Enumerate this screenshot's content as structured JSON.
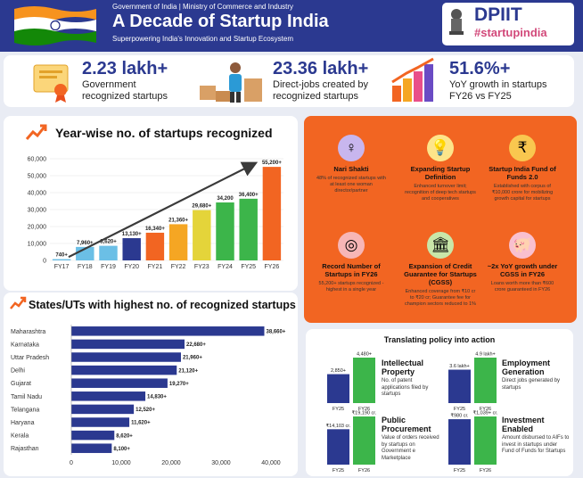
{
  "header": {
    "ministry": "Government of India | Ministry of Commerce and Industry",
    "title": "A Decade of Startup India",
    "subtitle": "Superpowering India's Innovation and Startup Ecosystem",
    "dpiit": "DPIIT",
    "hashtag": "#startupindia"
  },
  "stats": [
    {
      "value": "2.23 lakh+",
      "label": "Government recognized startups"
    },
    {
      "value": "23.36 lakh+",
      "label": "Direct-jobs created by recognized startups"
    },
    {
      "value": "51.6%+",
      "label": "YoY growth in startups FY26 vs FY25"
    }
  ],
  "colors": {
    "navy": "#2b3990",
    "orange": "#f26522",
    "green": "#3cb54a",
    "sky": "#6bbfe6",
    "yellow": "#e4d43a",
    "gold": "#f5a623"
  },
  "chart_data": [
    {
      "type": "bar",
      "title": "Year-wise no. of startups recognized",
      "categories": [
        "FY17",
        "FY18",
        "FY19",
        "FY20",
        "FY21",
        "FY22",
        "FY23",
        "FY24",
        "FY25",
        "FY26"
      ],
      "values": [
        740,
        7960,
        8620,
        13130,
        16340,
        21360,
        29680,
        34200,
        36400,
        55200
      ],
      "data_labels": [
        "740+",
        "7,960+",
        "8,620+",
        "13,130+",
        "16,340+",
        "21,360+",
        "29,680+",
        "34,200",
        "36,400+",
        "55,200+"
      ],
      "ylim": [
        0,
        60000
      ],
      "y_ticks": [
        0,
        10000,
        20000,
        30000,
        40000,
        50000,
        60000
      ],
      "y_tick_labels": [
        "0",
        "10,000",
        "20,000",
        "30,000",
        "40,000",
        "50,000",
        "60,000"
      ],
      "bar_colors": [
        "#6bbfe6",
        "#6bbfe6",
        "#6bbfe6",
        "#2b3990",
        "#f26522",
        "#f5a623",
        "#e4d43a",
        "#3cb54a",
        "#3cb54a",
        "#f26522"
      ]
    },
    {
      "type": "bar",
      "orientation": "horizontal",
      "title": "States/UTs with highest no. of recognized startups",
      "categories": [
        "Maharashtra",
        "Karnataka",
        "Uttar Pradesh",
        "Delhi",
        "Gujarat",
        "Tamil Nadu",
        "Telangana",
        "Haryana",
        "Kerala",
        "Rajasthan"
      ],
      "values": [
        38660,
        22680,
        21960,
        21120,
        19270,
        14830,
        12520,
        11620,
        8620,
        8100
      ],
      "data_labels": [
        "38,660+",
        "22,680+",
        "21,960+",
        "21,120+",
        "19,270+",
        "14,830+",
        "12,520+",
        "11,620+",
        "8,620+",
        "8,100+"
      ],
      "xlim": [
        0,
        40000
      ],
      "x_ticks": [
        0,
        10000,
        20000,
        30000,
        40000
      ],
      "x_tick_labels": [
        "0",
        "10,000",
        "20,000",
        "30,000",
        "40,000"
      ]
    },
    {
      "type": "bar",
      "title": "Translating policy into action",
      "panels": [
        {
          "name": "Intellectual Property",
          "desc": "No. of patent applications filed by startups",
          "categories": [
            "FY25",
            "FY26"
          ],
          "values": [
            2850,
            4480
          ],
          "data_labels": [
            "2,850+",
            "4,480+"
          ]
        },
        {
          "name": "Employment Generation",
          "desc": "Direct jobs generated by startups",
          "categories": [
            "FY25",
            "FY26"
          ],
          "values": [
            3.6,
            4.9
          ],
          "data_labels": [
            "3.6 lakh+",
            "4.9 lakh+"
          ]
        },
        {
          "name": "Public Procurement",
          "desc": "Value of orders received by startups on Government e Marketplace",
          "categories": [
            "FY25",
            "FY26"
          ],
          "values": [
            14103,
            19190
          ],
          "data_labels": [
            "₹14,103 cr.",
            "₹19,190 cr."
          ]
        },
        {
          "name": "Investment Enabled",
          "desc": "Amount disbursed to AIFs to invest in startups under Fund of Funds for Startups",
          "categories": [
            "FY25",
            "FY26"
          ],
          "values": [
            980,
            1039
          ],
          "data_labels": [
            "₹980 cr.",
            "₹1,039+ cr."
          ]
        }
      ]
    }
  ],
  "tiles": [
    {
      "title": "Nari Shakti",
      "desc": "48% of recognized startups with at least one woman director/partner",
      "icon": "woman-icon",
      "bg": "#ece6f7"
    },
    {
      "title": "Expanding Startup Definition",
      "desc": "Enhanced turnover limit; recognition of deep tech startups and cooperatives",
      "icon": "bulb-icon",
      "bg": "#e3f4dc"
    },
    {
      "title": "Startup India Fund of Funds 2.0",
      "desc": "Established with corpus of ₹10,000 crore for mobilizing growth capital for startups",
      "icon": "coin-icon",
      "bg": "#fdf1d0"
    },
    {
      "title": "Record Number of Startups in FY26",
      "desc": "55,200+ startups recognized - highest in a single year",
      "icon": "target-icon",
      "bg": "#e3eaf7"
    },
    {
      "title": "Expansion of Credit Guarantee for Startups (CGSS)",
      "desc": "Enhanced coverage from ₹10 cr to ₹20 cr; Guarantee fee for champion sectors reduced to 1%",
      "icon": "bank-icon",
      "bg": "#e3f4dc"
    },
    {
      "title": "~2x YoY growth under CGSS in FY26",
      "desc": "Loans worth more than ₹600 crore guaranteed in FY26",
      "icon": "piggy-icon",
      "bg": "#fde6ec"
    }
  ]
}
